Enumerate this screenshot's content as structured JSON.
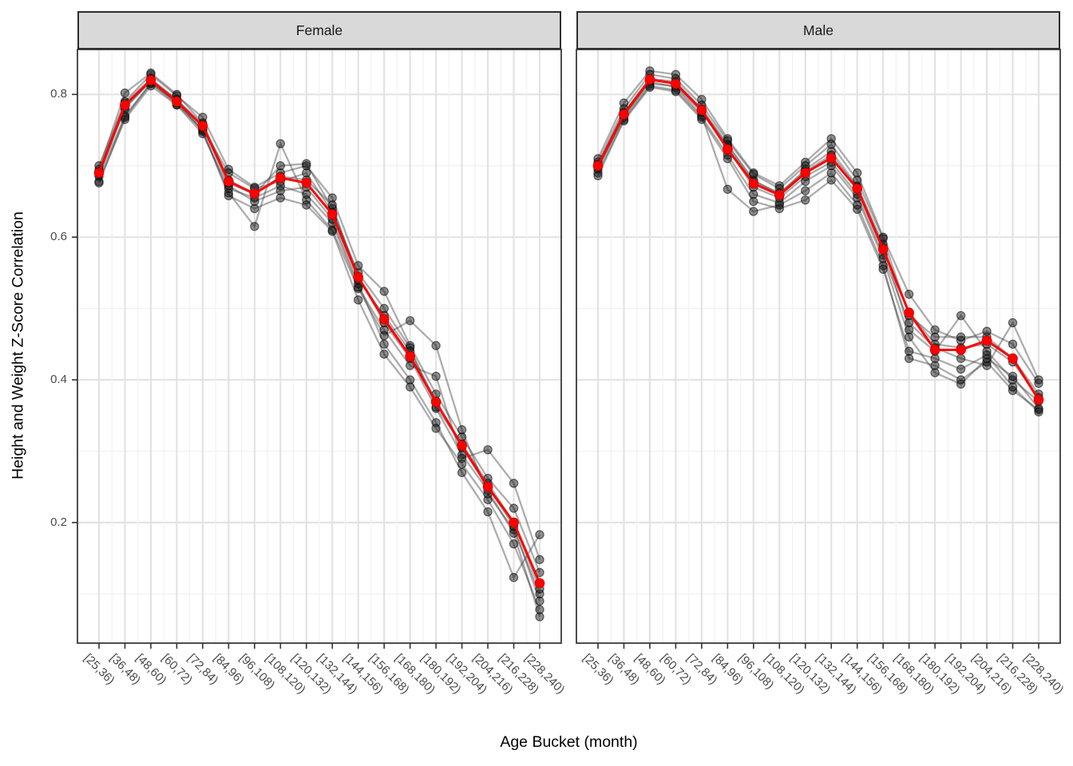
{
  "chart_data": {
    "type": "line",
    "title": "",
    "xlabel": "Age Bucket (month)",
    "ylabel": "Height and Weight Z-Score Correlation",
    "categories": [
      "[25,36)",
      "[36,48)",
      "[48,60)",
      "[60,72)",
      "[72,84)",
      "[84,96)",
      "[96,108)",
      "[108,120)",
      "[120,132)",
      "[132,144)",
      "[144,156)",
      "[156,168)",
      "[168,180)",
      "[180,192)",
      "[192,204)",
      "[204,216)",
      "[216,228)",
      "[228,240)"
    ],
    "y_ticks": [
      0.2,
      0.4,
      0.6,
      0.8
    ],
    "y_tick_labels": [
      "0.2",
      "0.4",
      "0.6",
      "0.8"
    ],
    "ylim": [
      0.031,
      0.863
    ],
    "grid": "major-and-minor",
    "legend": "none",
    "mean_color": "#FF0000",
    "series_line_color": "#3c3c3c",
    "series_point_color": "#1e1e1e",
    "strip_fill": "#D9D9D9",
    "facets": [
      {
        "label": "Female",
        "mean": [
          0.69,
          0.785,
          0.82,
          0.79,
          0.756,
          0.678,
          0.661,
          0.683,
          0.676,
          0.632,
          0.544,
          0.485,
          0.433,
          0.369,
          0.308,
          0.25,
          0.2,
          0.115
        ],
        "series": [
          [
            0.7,
            0.79,
            0.828,
            0.798,
            0.768,
            0.695,
            0.67,
            0.69,
            0.7,
            0.655,
            0.56,
            0.524,
            0.448,
            0.38,
            0.32,
            0.262,
            0.22,
            0.13
          ],
          [
            0.685,
            0.77,
            0.815,
            0.79,
            0.748,
            0.662,
            0.615,
            0.731,
            0.652,
            0.61,
            0.528,
            0.462,
            0.483,
            0.448,
            0.33,
            0.24,
            0.19,
            0.1
          ],
          [
            0.695,
            0.802,
            0.83,
            0.8,
            0.76,
            0.68,
            0.66,
            0.7,
            0.703,
            0.64,
            0.545,
            0.48,
            0.43,
            0.36,
            0.295,
            0.245,
            0.185,
            0.068
          ],
          [
            0.678,
            0.765,
            0.812,
            0.785,
            0.745,
            0.668,
            0.655,
            0.672,
            0.66,
            0.62,
            0.53,
            0.47,
            0.42,
            0.405,
            0.29,
            0.302,
            0.255,
            0.148
          ],
          [
            0.69,
            0.78,
            0.82,
            0.792,
            0.755,
            0.672,
            0.65,
            0.665,
            0.67,
            0.625,
            0.535,
            0.45,
            0.4,
            0.34,
            0.27,
            0.215,
            0.123,
            0.183
          ],
          [
            0.688,
            0.782,
            0.818,
            0.788,
            0.752,
            0.69,
            0.668,
            0.678,
            0.69,
            0.635,
            0.55,
            0.5,
            0.445,
            0.362,
            0.31,
            0.255,
            0.2,
            0.107
          ],
          [
            0.692,
            0.788,
            0.822,
            0.793,
            0.758,
            0.676,
            0.66,
            0.685,
            0.68,
            0.645,
            0.54,
            0.49,
            0.44,
            0.37,
            0.305,
            0.25,
            0.195,
            0.09
          ],
          [
            0.676,
            0.768,
            0.816,
            0.786,
            0.75,
            0.658,
            0.64,
            0.655,
            0.645,
            0.608,
            0.512,
            0.436,
            0.39,
            0.332,
            0.282,
            0.232,
            0.17,
            0.078
          ]
        ]
      },
      {
        "label": "Male",
        "mean": [
          0.7,
          0.772,
          0.821,
          0.815,
          0.778,
          0.723,
          0.675,
          0.659,
          0.69,
          0.711,
          0.668,
          0.583,
          0.494,
          0.442,
          0.442,
          0.455,
          0.43,
          0.372
        ],
        "series": [
          [
            0.71,
            0.788,
            0.833,
            0.828,
            0.793,
            0.738,
            0.69,
            0.672,
            0.705,
            0.738,
            0.69,
            0.6,
            0.52,
            0.47,
            0.455,
            0.468,
            0.45,
            0.395
          ],
          [
            0.695,
            0.77,
            0.818,
            0.81,
            0.77,
            0.667,
            0.636,
            0.645,
            0.665,
            0.69,
            0.645,
            0.56,
            0.43,
            0.42,
            0.4,
            0.425,
            0.385,
            0.358
          ],
          [
            0.7,
            0.775,
            0.822,
            0.818,
            0.78,
            0.73,
            0.68,
            0.66,
            0.695,
            0.72,
            0.672,
            0.59,
            0.47,
            0.44,
            0.49,
            0.44,
            0.4,
            0.37
          ],
          [
            0.705,
            0.78,
            0.828,
            0.822,
            0.785,
            0.735,
            0.688,
            0.668,
            0.7,
            0.73,
            0.68,
            0.598,
            0.49,
            0.46,
            0.46,
            0.46,
            0.43,
            0.38
          ],
          [
            0.698,
            0.768,
            0.815,
            0.812,
            0.775,
            0.725,
            0.67,
            0.655,
            0.685,
            0.705,
            0.66,
            0.575,
            0.48,
            0.445,
            0.43,
            0.42,
            0.48,
            0.4
          ],
          [
            0.69,
            0.765,
            0.812,
            0.806,
            0.768,
            0.715,
            0.66,
            0.648,
            0.678,
            0.7,
            0.655,
            0.57,
            0.46,
            0.41,
            0.394,
            0.43,
            0.405,
            0.36
          ],
          [
            0.702,
            0.774,
            0.82,
            0.816,
            0.778,
            0.728,
            0.678,
            0.662,
            0.692,
            0.715,
            0.67,
            0.585,
            0.495,
            0.45,
            0.445,
            0.45,
            0.425,
            0.375
          ],
          [
            0.686,
            0.763,
            0.81,
            0.804,
            0.765,
            0.71,
            0.65,
            0.64,
            0.652,
            0.68,
            0.639,
            0.555,
            0.44,
            0.43,
            0.415,
            0.435,
            0.39,
            0.355
          ]
        ]
      }
    ]
  }
}
